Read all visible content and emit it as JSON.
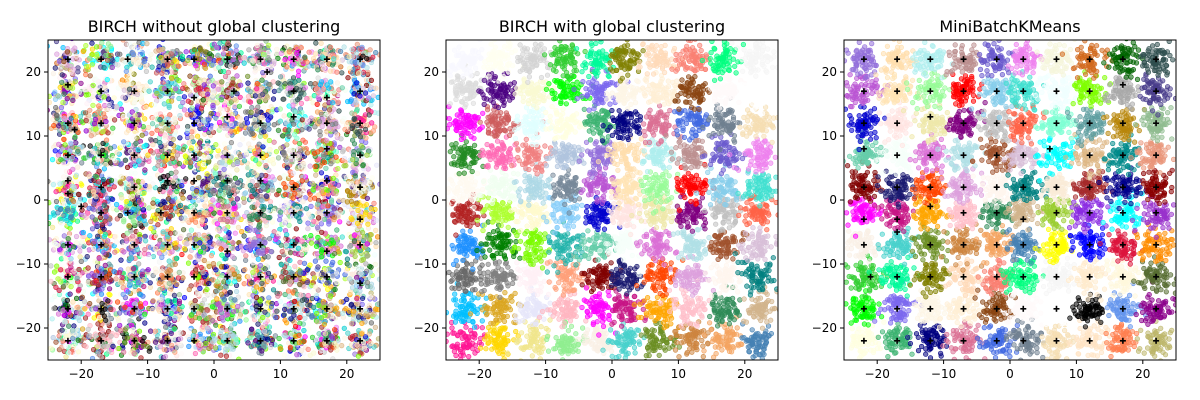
{
  "chart_data": [
    {
      "type": "scatter",
      "title": "BIRCH without global clustering",
      "xlabel": "",
      "ylabel": "",
      "xlim": [
        -25,
        25
      ],
      "ylim": [
        -25,
        25
      ],
      "xticks": [
        -20,
        -10,
        0,
        10,
        20
      ],
      "yticks": [
        -20,
        -10,
        0,
        10,
        20
      ],
      "tick_labels_x": [
        "−20",
        "−10",
        "0",
        "10",
        "20"
      ],
      "tick_labels_y": [
        "−20",
        "−10",
        "0",
        "10",
        "20"
      ],
      "grid": false,
      "description_of_marks": "dense colored circles around 10x10 grid of blob centers, black plus centroids",
      "grid_centers": [
        -22,
        -17,
        -12,
        -7,
        -2,
        2,
        7,
        12,
        17,
        22
      ],
      "centroids": [
        [
          -22,
          22
        ],
        [
          -17,
          22
        ],
        [
          -13,
          22
        ],
        [
          -7,
          22
        ],
        [
          -3,
          22
        ],
        [
          2,
          22
        ],
        [
          7,
          22
        ],
        [
          12,
          22
        ],
        [
          17,
          22
        ],
        [
          22,
          22
        ],
        [
          -22,
          18
        ],
        [
          -17,
          17
        ],
        [
          -12,
          17
        ],
        [
          -7,
          17
        ],
        [
          -3,
          16
        ],
        [
          3,
          17
        ],
        [
          8,
          20
        ],
        [
          12,
          17
        ],
        [
          17,
          16
        ],
        [
          22,
          17
        ],
        [
          -22,
          12
        ],
        [
          -21,
          11
        ],
        [
          -17,
          12
        ],
        [
          -12,
          12
        ],
        [
          -7,
          12
        ],
        [
          -3,
          12
        ],
        [
          2,
          13
        ],
        [
          7,
          12
        ],
        [
          12,
          13
        ],
        [
          17,
          12
        ],
        [
          22,
          12
        ],
        [
          -22,
          7
        ],
        [
          -17,
          7
        ],
        [
          -12,
          7
        ],
        [
          -7,
          7
        ],
        [
          -3,
          7
        ],
        [
          2,
          7
        ],
        [
          7,
          7
        ],
        [
          12,
          7
        ],
        [
          17,
          8
        ],
        [
          22,
          7
        ],
        [
          -22,
          3
        ],
        [
          -17,
          2
        ],
        [
          -12,
          2
        ],
        [
          -7,
          3
        ],
        [
          -3,
          3
        ],
        [
          2,
          3
        ],
        [
          7,
          3
        ],
        [
          12,
          2
        ],
        [
          17,
          3
        ],
        [
          22,
          2
        ],
        [
          -22,
          1
        ],
        [
          -20,
          -1
        ],
        [
          -17,
          -2
        ],
        [
          -13,
          -2
        ],
        [
          -8,
          -2
        ],
        [
          -3,
          -2
        ],
        [
          2,
          -2
        ],
        [
          7,
          -2
        ],
        [
          12,
          -2
        ],
        [
          17,
          -2
        ],
        [
          22,
          -3
        ],
        [
          -22,
          -7
        ],
        [
          -17,
          -7
        ],
        [
          -12,
          -7
        ],
        [
          -7,
          -7
        ],
        [
          -3,
          -7
        ],
        [
          2,
          -8
        ],
        [
          7,
          -7
        ],
        [
          12,
          -7
        ],
        [
          17,
          -8
        ],
        [
          22,
          -7
        ],
        [
          -22,
          -12
        ],
        [
          -17,
          -12
        ],
        [
          -12,
          -12
        ],
        [
          -7,
          -12
        ],
        [
          -3,
          -12
        ],
        [
          2,
          -12
        ],
        [
          7,
          -12
        ],
        [
          12,
          -12
        ],
        [
          17,
          -12
        ],
        [
          22,
          -13
        ],
        [
          -22,
          -17
        ],
        [
          -17,
          -17
        ],
        [
          -12,
          -17
        ],
        [
          -7,
          -17
        ],
        [
          -3,
          -17
        ],
        [
          2,
          -17
        ],
        [
          7,
          -17
        ],
        [
          12,
          -17
        ],
        [
          17,
          -17
        ],
        [
          22,
          -17
        ],
        [
          -22,
          -22
        ],
        [
          -17,
          -22
        ],
        [
          -12,
          -22
        ],
        [
          -7,
          -22
        ],
        [
          -3,
          -22
        ],
        [
          2,
          -22
        ],
        [
          7,
          -22
        ],
        [
          12,
          -22
        ],
        [
          17,
          -22
        ],
        [
          22,
          -22
        ]
      ]
    },
    {
      "type": "scatter",
      "title": "BIRCH with global clustering",
      "xlabel": "",
      "ylabel": "",
      "xlim": [
        -25,
        25
      ],
      "ylim": [
        -25,
        25
      ],
      "xticks": [
        -20,
        -10,
        0,
        10,
        20
      ],
      "yticks": [
        -20,
        -10,
        0,
        10,
        20
      ],
      "tick_labels_x": [
        "−20",
        "−10",
        "0",
        "10",
        "20"
      ],
      "tick_labels_y": [
        "−20",
        "−10",
        "0",
        "10",
        "20"
      ],
      "grid": false,
      "description_of_marks": "dense colored circles around 10x10 grid of blob centers, no centroids",
      "grid_centers": [
        -22,
        -17,
        -12,
        -7,
        -2,
        2,
        7,
        12,
        17,
        22
      ],
      "centroids": []
    },
    {
      "type": "scatter",
      "title": "MiniBatchKMeans",
      "xlabel": "",
      "ylabel": "",
      "xlim": [
        -25,
        25
      ],
      "ylim": [
        -25,
        25
      ],
      "xticks": [
        -20,
        -10,
        0,
        10,
        20
      ],
      "yticks": [
        -20,
        -10,
        0,
        10,
        20
      ],
      "tick_labels_x": [
        "−20",
        "−10",
        "0",
        "10",
        "20"
      ],
      "tick_labels_y": [
        "−20",
        "−10",
        "0",
        "10",
        "20"
      ],
      "grid": false,
      "description_of_marks": "dense colored circles around 10x10 grid of blob centers, black plus centroids",
      "grid_centers": [
        -22,
        -17,
        -12,
        -7,
        -2,
        2,
        7,
        12,
        17,
        22
      ],
      "centroids": [
        [
          -22,
          22
        ],
        [
          -17,
          22
        ],
        [
          -12,
          22
        ],
        [
          -7,
          22
        ],
        [
          -2,
          22
        ],
        [
          2,
          22
        ],
        [
          7,
          22
        ],
        [
          12,
          22
        ],
        [
          17,
          22
        ],
        [
          22,
          22
        ],
        [
          -22,
          17
        ],
        [
          -17,
          17
        ],
        [
          -12,
          17
        ],
        [
          -7,
          17
        ],
        [
          -2,
          17
        ],
        [
          2,
          17
        ],
        [
          7,
          17
        ],
        [
          12,
          17
        ],
        [
          17,
          18
        ],
        [
          22,
          17
        ],
        [
          -22,
          12
        ],
        [
          -17,
          12
        ],
        [
          -12,
          13
        ],
        [
          -7,
          12
        ],
        [
          -2,
          12
        ],
        [
          2,
          12
        ],
        [
          7,
          12
        ],
        [
          12,
          12
        ],
        [
          17,
          12
        ],
        [
          22,
          12
        ],
        [
          -22,
          8
        ],
        [
          -17,
          7
        ],
        [
          -12,
          7
        ],
        [
          -7,
          7
        ],
        [
          -2,
          7
        ],
        [
          2,
          7
        ],
        [
          6,
          8
        ],
        [
          12,
          7
        ],
        [
          17,
          7
        ],
        [
          22,
          7
        ],
        [
          -22,
          2
        ],
        [
          -17,
          2
        ],
        [
          -12,
          2
        ],
        [
          -7,
          2
        ],
        [
          -2,
          2
        ],
        [
          2,
          2
        ],
        [
          7,
          2
        ],
        [
          12,
          2
        ],
        [
          17,
          2
        ],
        [
          22,
          2
        ],
        [
          -22,
          -3
        ],
        [
          -17,
          -3
        ],
        [
          -12,
          -1
        ],
        [
          -7,
          -2
        ],
        [
          -2,
          -2
        ],
        [
          2,
          -3
        ],
        [
          7,
          -2
        ],
        [
          12,
          -2
        ],
        [
          17,
          -2
        ],
        [
          22,
          -2
        ],
        [
          -22,
          -7
        ],
        [
          -17,
          -5
        ],
        [
          -12,
          -7
        ],
        [
          -7,
          -7
        ],
        [
          -2,
          -7
        ],
        [
          2,
          -7
        ],
        [
          7,
          -7
        ],
        [
          12,
          -7
        ],
        [
          17,
          -7
        ],
        [
          22,
          -7
        ],
        [
          -21,
          -12
        ],
        [
          -17,
          -12
        ],
        [
          -12,
          -12
        ],
        [
          -7,
          -12
        ],
        [
          -2,
          -12
        ],
        [
          2,
          -12
        ],
        [
          7,
          -12
        ],
        [
          12,
          -12
        ],
        [
          17,
          -12
        ],
        [
          22,
          -12
        ],
        [
          -22,
          -17
        ],
        [
          -17,
          -17
        ],
        [
          -12,
          -17
        ],
        [
          -7,
          -17
        ],
        [
          -2,
          -17
        ],
        [
          2,
          -17
        ],
        [
          7,
          -17
        ],
        [
          12,
          -17
        ],
        [
          17,
          -17
        ],
        [
          22,
          -17
        ],
        [
          -22,
          -22
        ],
        [
          -17,
          -22
        ],
        [
          -12,
          -22
        ],
        [
          -7,
          -22
        ],
        [
          -2,
          -22
        ],
        [
          2,
          -22
        ],
        [
          7,
          -22
        ],
        [
          12,
          -22
        ],
        [
          17,
          -22
        ],
        [
          22,
          -22
        ]
      ]
    }
  ],
  "palette": [
    "#faebd7",
    "#00ffff",
    "#7fffd4",
    "#f0ffff",
    "#f5f5dc",
    "#ffe4c4",
    "#000000",
    "#ffebcd",
    "#0000ff",
    "#8a2be2",
    "#a52a2a",
    "#deb887",
    "#5f9ea0",
    "#7fff00",
    "#d2691e",
    "#ff7f50",
    "#6495ed",
    "#fff8dc",
    "#dc143c",
    "#00ffff",
    "#00008b",
    "#008b8b",
    "#b8860b",
    "#a9a9a9",
    "#006400",
    "#bdb76b",
    "#8b008b",
    "#556b2f",
    "#ff8c00",
    "#9932cc",
    "#8b0000",
    "#e9967a",
    "#8fbc8f",
    "#483d8b",
    "#2f4f4f",
    "#00ced1",
    "#9400d3",
    "#ff1493",
    "#00bfff",
    "#696969",
    "#1e90ff",
    "#b22222",
    "#fffaf0",
    "#228b22",
    "#ff00ff",
    "#dcdcdc",
    "#f8f8ff",
    "#ffd700",
    "#daa520",
    "#808080",
    "#008000",
    "#adff2f",
    "#f0fff0",
    "#ff69b4",
    "#cd5c5c",
    "#4b0082",
    "#fffff0",
    "#f0e68c",
    "#e6e6fa",
    "#fff0f5",
    "#7cfc00",
    "#fffacd",
    "#add8e6",
    "#f08080",
    "#e0ffff",
    "#fafad2",
    "#d3d3d3",
    "#90ee90",
    "#ffb6c1",
    "#ffa07a",
    "#20b2aa",
    "#87cefa",
    "#778899",
    "#b0c4de",
    "#ffffe0",
    "#00ff00",
    "#32cd32",
    "#faf0e6",
    "#ff00ff",
    "#800000",
    "#66cdaa",
    "#0000cd",
    "#ba55d3",
    "#9370db",
    "#3cb371",
    "#7b68ee",
    "#00fa9a",
    "#48d1cc",
    "#c71585",
    "#191970",
    "#f5fffa",
    "#ffe4e1",
    "#ffe4b5",
    "#ffdead",
    "#000080",
    "#fdf5e6",
    "#808000",
    "#6b8e23",
    "#ffa500",
    "#ff4500",
    "#da70d6",
    "#eee8aa",
    "#98fb98",
    "#afeeee",
    "#db7093",
    "#ffefd5",
    "#ffdab9",
    "#cd853f",
    "#ffc0cb",
    "#dda0dd",
    "#b0e0e6",
    "#800080",
    "#ff0000",
    "#bc8f8f",
    "#4169e1",
    "#8b4513",
    "#fa8072",
    "#f4a460",
    "#2e8b57",
    "#fff5ee",
    "#a0522d",
    "#c0c0c0",
    "#87ceeb",
    "#6a5acd",
    "#708090",
    "#fffafa",
    "#00ff7f",
    "#4682b4",
    "#d2b48c",
    "#008080",
    "#d8bfd8",
    "#ff6347",
    "#40e0d0",
    "#ee82ee",
    "#f5deb3",
    "#ffffff",
    "#f5f5f5",
    "#ffff00",
    "#9acd32"
  ]
}
